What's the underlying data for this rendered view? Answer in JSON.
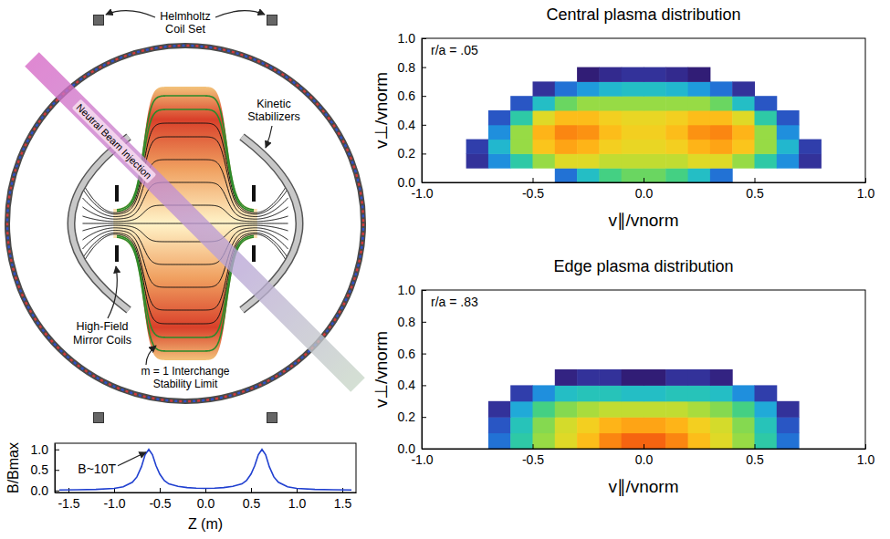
{
  "diagram": {
    "labels": {
      "helmholtz": [
        "Helmholtz",
        "Coil Set"
      ],
      "kinetic_stabilizers": [
        "Kinetic",
        "Stabilizers"
      ],
      "neutral_beam": "Neutral Beam Injection",
      "mirror_coils": [
        "High-Field",
        "Mirror Coils"
      ],
      "interchange_limit": [
        "m = 1 Interchange",
        "Stability Limit"
      ]
    }
  },
  "chart_data": [
    {
      "type": "line",
      "x_label": "Z (m)",
      "y_label": "B/Bmax",
      "x": [
        -1.6,
        -1.4,
        -1.2,
        -1.0,
        -0.9,
        -0.8,
        -0.75,
        -0.7,
        -0.66,
        -0.62,
        -0.58,
        -0.54,
        -0.5,
        -0.45,
        -0.4,
        -0.3,
        -0.2,
        -0.1,
        0,
        0.1,
        0.2,
        0.3,
        0.4,
        0.45,
        0.5,
        0.54,
        0.58,
        0.62,
        0.66,
        0.7,
        0.75,
        0.8,
        0.9,
        1.0,
        1.2,
        1.4,
        1.6
      ],
      "values": [
        0.01,
        0.015,
        0.025,
        0.05,
        0.09,
        0.2,
        0.33,
        0.58,
        0.87,
        1.0,
        0.87,
        0.6,
        0.4,
        0.24,
        0.16,
        0.1,
        0.07,
        0.055,
        0.05,
        0.055,
        0.07,
        0.1,
        0.16,
        0.24,
        0.4,
        0.6,
        0.87,
        1.0,
        0.87,
        0.58,
        0.33,
        0.2,
        0.09,
        0.05,
        0.025,
        0.015,
        0.01
      ],
      "color": "#2040d0",
      "xlim": [
        -1.65,
        1.65
      ],
      "xticks": [
        -1.5,
        {
          "value": -1,
          "label": "-1.0"
        },
        -0.5,
        {
          "value": 0,
          "label": "0.0"
        },
        0.5,
        {
          "value": 1,
          "label": "1.0"
        },
        1.5
      ],
      "ylim": [
        -0.05,
        1.15
      ],
      "yticks": [
        {
          "value": 0,
          "label": "0.0"
        },
        0.5,
        {
          "value": 1,
          "label": "1.0"
        }
      ],
      "annotations": [
        {
          "text": "B~10T",
          "x": -0.62,
          "y": 1.0
        }
      ]
    },
    {
      "type": "heatmap",
      "title": "Central plasma distribution",
      "annotations": [
        "r/a = .05"
      ],
      "x_label": "v∥/vnorm",
      "y_label": "v⊥/vnorm",
      "x": [
        -0.95,
        -0.85,
        -0.75,
        -0.65,
        -0.55,
        -0.45,
        -0.35,
        -0.25,
        -0.15,
        -0.05,
        0.05,
        0.15,
        0.25,
        0.35,
        0.45,
        0.55,
        0.65,
        0.75,
        0.85,
        0.95
      ],
      "y": [
        0.05,
        0.15,
        0.25,
        0.35,
        0.45,
        0.55,
        0.65,
        0.75
      ],
      "z": [
        [
          null,
          null,
          null,
          null,
          null,
          null,
          0.25,
          0.4,
          0.5,
          0.55,
          0.55,
          0.5,
          0.4,
          0.25,
          null,
          null,
          null,
          null,
          null,
          null
        ],
        [
          null,
          null,
          0.12,
          0.3,
          0.45,
          0.6,
          0.7,
          0.7,
          0.65,
          0.65,
          0.65,
          0.65,
          0.7,
          0.7,
          0.6,
          0.45,
          0.3,
          0.12,
          null,
          null
        ],
        [
          null,
          null,
          0.15,
          0.38,
          0.6,
          0.78,
          0.85,
          0.82,
          0.75,
          0.72,
          0.72,
          0.75,
          0.82,
          0.85,
          0.78,
          0.6,
          0.38,
          0.15,
          null,
          null
        ],
        [
          null,
          null,
          null,
          0.3,
          0.6,
          0.82,
          0.9,
          0.88,
          0.8,
          0.75,
          0.75,
          0.8,
          0.88,
          0.9,
          0.82,
          0.6,
          0.3,
          null,
          null,
          null
        ],
        [
          null,
          null,
          null,
          0.2,
          0.45,
          0.7,
          0.8,
          0.8,
          0.75,
          0.72,
          0.72,
          0.75,
          0.8,
          0.8,
          0.7,
          0.45,
          0.2,
          null,
          null,
          null
        ],
        [
          null,
          null,
          null,
          null,
          0.2,
          0.4,
          0.55,
          0.6,
          0.6,
          0.6,
          0.6,
          0.6,
          0.6,
          0.55,
          0.4,
          0.2,
          null,
          null,
          null,
          null
        ],
        [
          null,
          null,
          null,
          null,
          null,
          0.12,
          0.25,
          0.32,
          0.38,
          0.4,
          0.4,
          0.38,
          0.32,
          0.25,
          0.12,
          null,
          null,
          null,
          null,
          null
        ],
        [
          null,
          null,
          null,
          null,
          null,
          null,
          null,
          0.06,
          0.1,
          0.12,
          0.12,
          0.1,
          0.06,
          null,
          null,
          null,
          null,
          null,
          null,
          null
        ]
      ],
      "zlim": [
        0,
        1
      ],
      "xlim": [
        -1,
        1
      ],
      "xticks": [
        {
          "value": -1,
          "label": "-1.0"
        },
        -0.5,
        {
          "value": 0,
          "label": "0.0"
        },
        0.5,
        {
          "value": 1,
          "label": "1.0"
        }
      ],
      "ylim": [
        0,
        1
      ],
      "yticks": [
        {
          "value": 0,
          "label": "0.0"
        },
        0.2,
        0.4,
        0.6,
        0.8,
        {
          "value": 1,
          "label": "1.0"
        }
      ]
    },
    {
      "type": "heatmap",
      "title": "Edge plasma distribution",
      "annotations": [
        "r/a = .83"
      ],
      "x_label": "v∥/vnorm",
      "y_label": "v⊥/vnorm",
      "x": [
        -0.95,
        -0.85,
        -0.75,
        -0.65,
        -0.55,
        -0.45,
        -0.35,
        -0.25,
        -0.15,
        -0.05,
        0.05,
        0.15,
        0.25,
        0.35,
        0.45,
        0.55,
        0.65,
        0.75,
        0.85,
        0.95
      ],
      "y": [
        0.05,
        0.15,
        0.25,
        0.35,
        0.45
      ],
      "z": [
        [
          null,
          null,
          null,
          0.25,
          0.45,
          0.6,
          0.7,
          0.8,
          0.9,
          0.95,
          0.95,
          0.9,
          0.8,
          0.7,
          0.6,
          0.45,
          0.25,
          null,
          null,
          null
        ],
        [
          null,
          null,
          null,
          0.2,
          0.42,
          0.58,
          0.68,
          0.75,
          0.82,
          0.85,
          0.85,
          0.82,
          0.75,
          0.68,
          0.58,
          0.42,
          0.2,
          null,
          null,
          null
        ],
        [
          null,
          null,
          null,
          0.12,
          0.35,
          0.5,
          0.58,
          0.62,
          0.65,
          0.65,
          0.65,
          0.65,
          0.62,
          0.58,
          0.5,
          0.35,
          0.12,
          null,
          null,
          null
        ],
        [
          null,
          null,
          null,
          null,
          0.15,
          0.3,
          0.4,
          0.42,
          0.42,
          0.4,
          0.4,
          0.42,
          0.42,
          0.4,
          0.3,
          0.15,
          null,
          null,
          null,
          null
        ],
        [
          null,
          null,
          null,
          null,
          null,
          null,
          0.08,
          0.12,
          0.12,
          0.06,
          0.06,
          0.12,
          0.12,
          0.08,
          null,
          null,
          null,
          null,
          null,
          null
        ]
      ],
      "zlim": [
        0,
        1
      ],
      "xlim": [
        -1,
        1
      ],
      "xticks": [
        {
          "value": -1,
          "label": "-1.0"
        },
        -0.5,
        {
          "value": 0,
          "label": "0.0"
        },
        0.5,
        {
          "value": 1,
          "label": "1.0"
        }
      ],
      "ylim": [
        0,
        1
      ],
      "yticks": [
        {
          "value": 0,
          "label": "0.0"
        },
        0.2,
        0.4,
        0.6,
        0.8,
        {
          "value": 1,
          "label": "1.0"
        }
      ]
    }
  ]
}
